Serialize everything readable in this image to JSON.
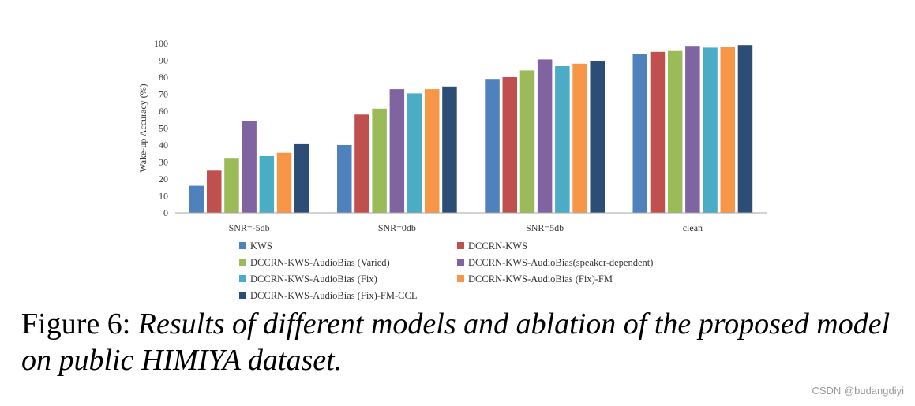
{
  "chart_data": {
    "type": "bar",
    "ylabel": "Wake-up Accuracy (%)",
    "xlabel": "",
    "ylim": [
      0,
      100
    ],
    "yticks": [
      0,
      10,
      20,
      30,
      40,
      50,
      60,
      70,
      80,
      90,
      100
    ],
    "grid": false,
    "legend_position": "bottom",
    "categories": [
      "SNR=-5db",
      "SNR=0db",
      "SNR=5db",
      "clean"
    ],
    "series": [
      {
        "name": "KWS",
        "color": "#4f81bd",
        "values": [
          16,
          40,
          79,
          93.5
        ]
      },
      {
        "name": "DCCRN-KWS",
        "color": "#c0504d",
        "values": [
          25,
          58,
          80,
          95
        ]
      },
      {
        "name": "DCCRN-KWS-AudioBias (Varied)",
        "color": "#9bbb59",
        "values": [
          32,
          61.5,
          84,
          95.5
        ]
      },
      {
        "name": "DCCRN-KWS-AudioBias(speaker-dependent)",
        "color": "#8064a2",
        "values": [
          54,
          73,
          90.5,
          98.5
        ]
      },
      {
        "name": "DCCRN-KWS-AudioBias (Fix)",
        "color": "#4bacc6",
        "values": [
          33.5,
          70.5,
          86.5,
          97.5
        ]
      },
      {
        "name": "DCCRN-KWS-AudioBias (Fix)-FM",
        "color": "#f79646",
        "values": [
          35.5,
          73,
          88,
          98
        ]
      },
      {
        "name": "DCCRN-KWS-AudioBias (Fix)-FM-CCL",
        "color": "#2c4d75",
        "values": [
          40.5,
          74.5,
          89.5,
          99
        ]
      }
    ]
  },
  "caption": {
    "lead": "Figure 6:",
    "text": "Results of different models and ablation of the proposed model on public HIMIYA dataset."
  },
  "watermark": "CSDN @budangdiyi"
}
